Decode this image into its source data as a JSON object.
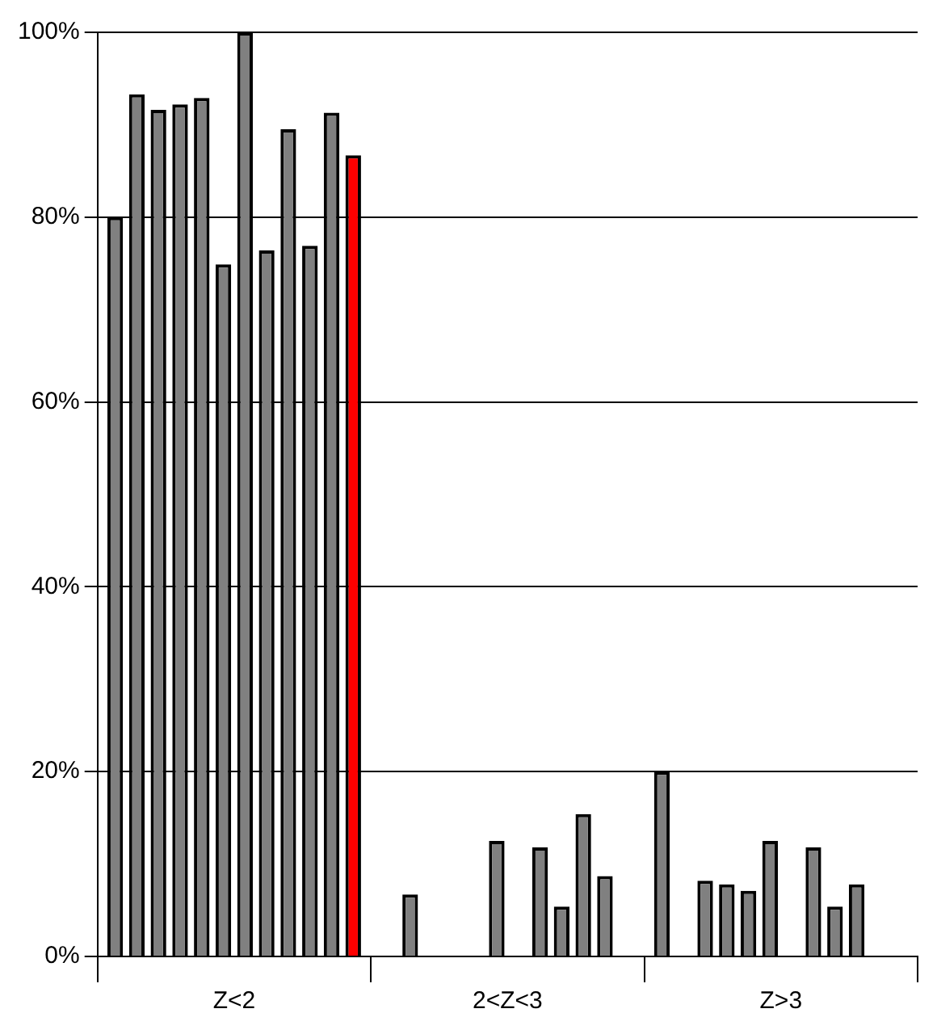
{
  "chart_data": {
    "type": "bar",
    "categories": [
      "Z<2",
      "2<Z<3",
      "Z>3"
    ],
    "series": [
      {
        "color": "#808080",
        "values": [
          80.0,
          0,
          20.0
        ]
      },
      {
        "color": "#808080",
        "values": [
          93.3,
          6.7,
          0
        ]
      },
      {
        "color": "#808080",
        "values": [
          91.6,
          0,
          8.2
        ]
      },
      {
        "color": "#808080",
        "values": [
          92.2,
          0,
          7.8
        ]
      },
      {
        "color": "#808080",
        "values": [
          92.9,
          0,
          7.1
        ]
      },
      {
        "color": "#808080",
        "values": [
          74.9,
          12.5,
          12.5
        ]
      },
      {
        "color": "#808080",
        "values": [
          100,
          0,
          0
        ]
      },
      {
        "color": "#808080",
        "values": [
          76.4,
          11.8,
          11.8
        ]
      },
      {
        "color": "#808080",
        "values": [
          89.5,
          5.4,
          5.4
        ]
      },
      {
        "color": "#808080",
        "values": [
          76.9,
          15.4,
          7.8
        ]
      },
      {
        "color": "#808080",
        "values": [
          91.3,
          8.7,
          null
        ]
      },
      {
        "color": "#ff0000",
        "values": [
          86.7,
          0,
          null
        ]
      }
    ],
    "ylim": [
      0,
      100
    ],
    "yticks": [
      {
        "value": 0,
        "label": "0%"
      },
      {
        "value": 20,
        "label": "20%"
      },
      {
        "value": 40,
        "label": "40%"
      },
      {
        "value": 60,
        "label": "60%"
      },
      {
        "value": 80,
        "label": "80%"
      },
      {
        "value": 100,
        "label": "100%"
      }
    ],
    "grid": "y",
    "legend": false
  }
}
